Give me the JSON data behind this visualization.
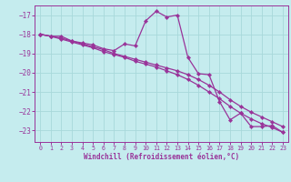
{
  "xlabel": "Windchill (Refroidissement éolien,°C)",
  "background_color": "#c5ecee",
  "grid_color": "#a8d8da",
  "line_color": "#993399",
  "xlim": [
    -0.5,
    23.5
  ],
  "ylim": [
    -23.6,
    -16.5
  ],
  "xticks": [
    0,
    1,
    2,
    3,
    4,
    5,
    6,
    7,
    8,
    9,
    10,
    11,
    12,
    13,
    14,
    15,
    16,
    17,
    18,
    19,
    20,
    21,
    22,
    23
  ],
  "yticks": [
    -17,
    -18,
    -19,
    -20,
    -21,
    -22,
    -23
  ],
  "line_peak_x": [
    0,
    1,
    2,
    3,
    4,
    5,
    6,
    7,
    8,
    9,
    10,
    11,
    12,
    13,
    14,
    15,
    16,
    17,
    18,
    19,
    20,
    21,
    22,
    23
  ],
  "line_peak_y": [
    -18.0,
    -18.1,
    -18.1,
    -18.35,
    -18.45,
    -18.55,
    -18.75,
    -18.85,
    -18.5,
    -18.6,
    -17.3,
    -16.8,
    -17.1,
    -17.0,
    -19.2,
    -20.05,
    -20.1,
    -21.5,
    -22.45,
    -22.1,
    -22.8,
    -22.8,
    -22.75,
    -23.1
  ],
  "line_upper_x": [
    0,
    1,
    2,
    3,
    4,
    5,
    6,
    7,
    8,
    9,
    10,
    11,
    12,
    13,
    14,
    15,
    16,
    17,
    18,
    19,
    20,
    21,
    22,
    23
  ],
  "line_upper_y": [
    -18.0,
    -18.1,
    -18.2,
    -18.35,
    -18.5,
    -18.65,
    -18.8,
    -19.0,
    -19.15,
    -19.3,
    -19.45,
    -19.6,
    -19.75,
    -19.9,
    -20.1,
    -20.35,
    -20.65,
    -21.0,
    -21.4,
    -21.75,
    -22.05,
    -22.3,
    -22.55,
    -22.8
  ],
  "line_lower_x": [
    0,
    1,
    2,
    3,
    4,
    5,
    6,
    7,
    8,
    9,
    10,
    11,
    12,
    13,
    14,
    15,
    16,
    17,
    18,
    19,
    20,
    21,
    22,
    23
  ],
  "line_lower_y": [
    -18.0,
    -18.1,
    -18.25,
    -18.4,
    -18.55,
    -18.7,
    -18.9,
    -19.05,
    -19.2,
    -19.4,
    -19.55,
    -19.7,
    -19.9,
    -20.1,
    -20.35,
    -20.65,
    -21.0,
    -21.35,
    -21.75,
    -22.1,
    -22.4,
    -22.65,
    -22.85,
    -23.1
  ]
}
